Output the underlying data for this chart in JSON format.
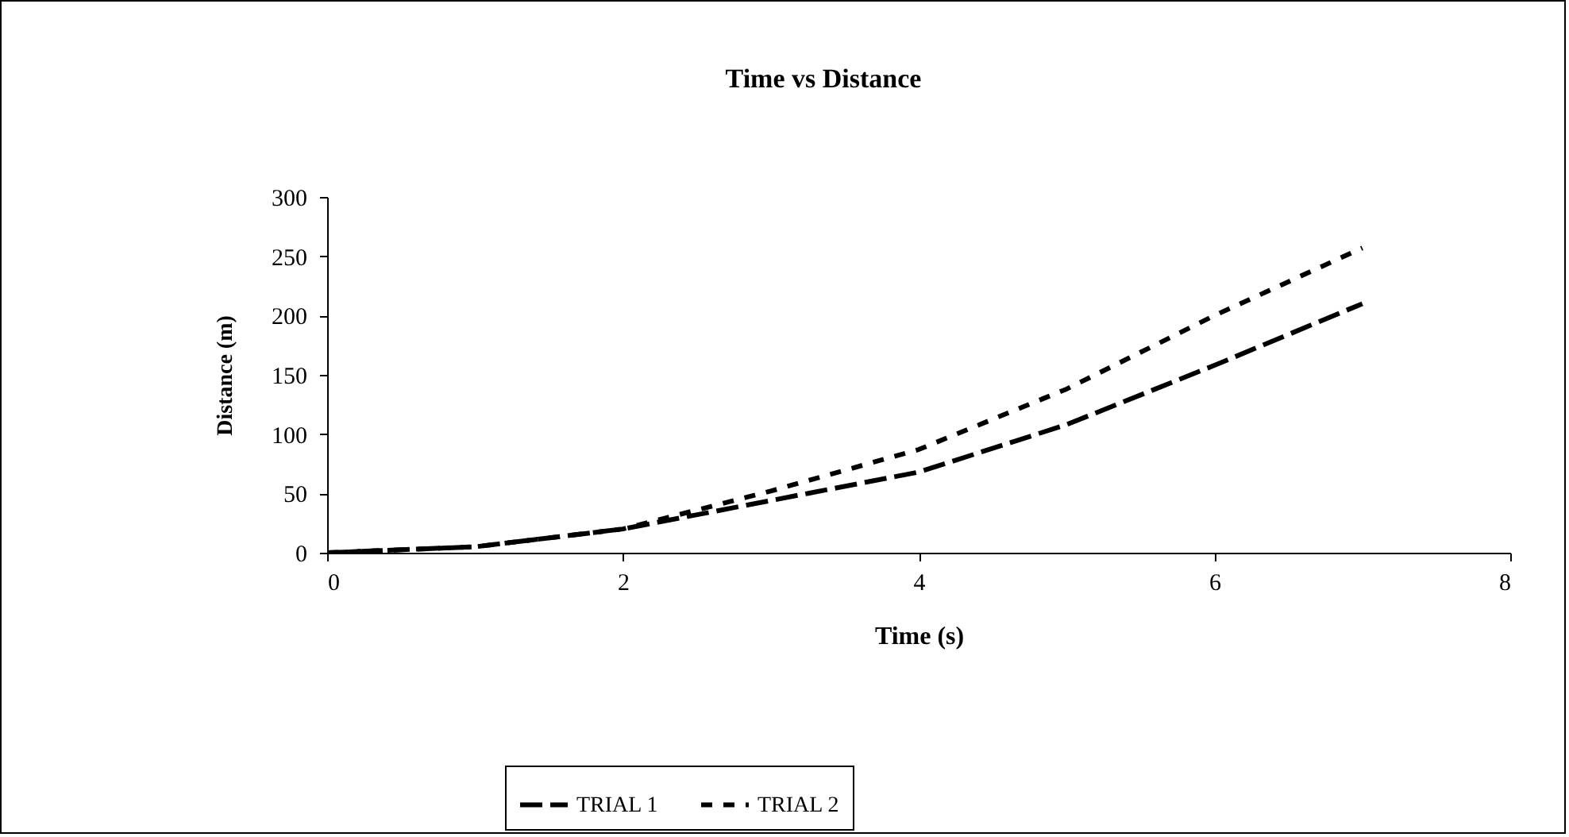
{
  "chart_data": {
    "type": "line",
    "title": "Time vs Distance",
    "xlabel": "Time (s)",
    "ylabel": "Distance (m)",
    "x": [
      0,
      1,
      2,
      3,
      4,
      5,
      6,
      7
    ],
    "series": [
      {
        "name": "TRIAL 1",
        "color": "#000000",
        "line_style": "dashed",
        "values": [
          0,
          5,
          20,
          44,
          68,
          108,
          158,
          210
        ]
      },
      {
        "name": "TRIAL 2",
        "color": "#000000",
        "line_style": "dotted",
        "values": [
          0,
          5,
          20,
          52,
          87,
          138,
          200,
          257
        ]
      }
    ],
    "xlim": [
      0,
      8
    ],
    "xticks": [
      0,
      2,
      4,
      6,
      8
    ],
    "ylim": [
      0,
      300
    ],
    "yticks": [
      0,
      50,
      100,
      150,
      200,
      250,
      300
    ],
    "legend": "bottom"
  }
}
